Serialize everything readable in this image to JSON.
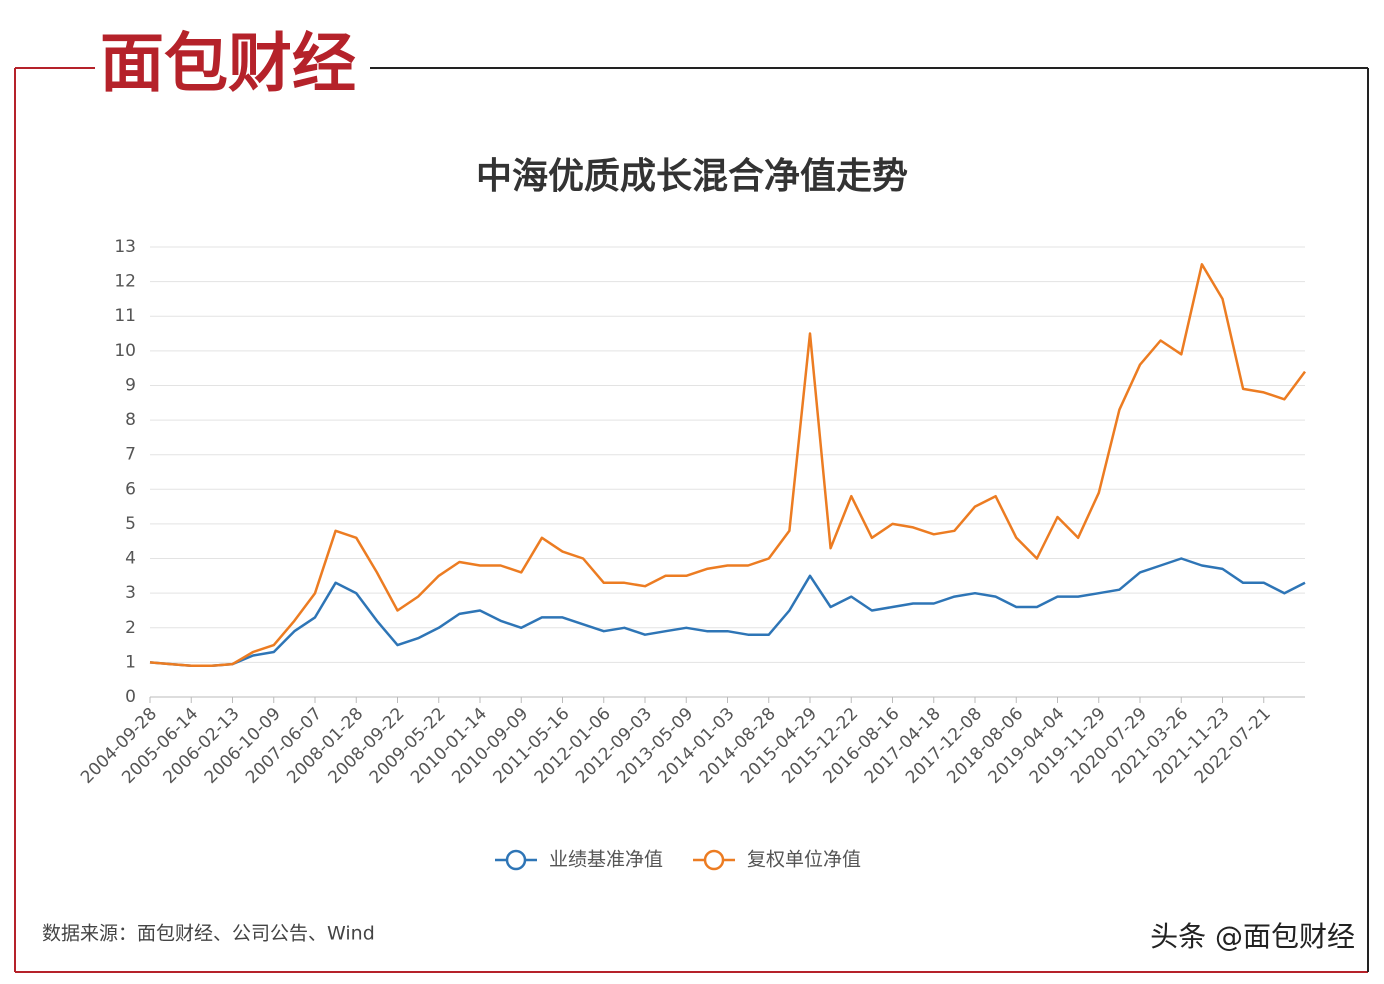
{
  "logo": "面包财经",
  "source": "数据来源：面包财经、公司公告、Wind",
  "watermark": "头条 @面包财经",
  "chart_data": {
    "type": "line",
    "title": "中海优质成长混合净值走势",
    "categories": [
      "2004-09-28",
      null,
      "2005-06-14",
      null,
      "2006-02-13",
      null,
      "2006-10-09",
      null,
      "2007-06-07",
      null,
      "2008-01-28",
      null,
      "2008-09-22",
      null,
      "2009-05-22",
      null,
      "2010-01-14",
      null,
      "2010-09-09",
      null,
      "2011-05-16",
      null,
      "2012-01-06",
      null,
      "2012-09-03",
      null,
      "2013-05-09",
      null,
      "2014-01-03",
      null,
      "2014-08-28",
      null,
      "2015-04-29",
      null,
      "2015-12-22",
      null,
      "2016-08-16",
      null,
      "2017-04-18",
      null,
      "2017-12-08",
      null,
      "2018-08-06",
      null,
      "2019-04-04",
      null,
      "2019-11-29",
      null,
      "2020-07-29",
      null,
      "2021-03-26",
      null,
      "2021-11-23",
      null,
      "2022-07-21",
      null,
      null
    ],
    "series": [
      {
        "name": "业绩基准净值",
        "color": "#2e75b6",
        "values": [
          1.0,
          0.95,
          0.9,
          0.9,
          0.95,
          1.2,
          1.3,
          1.9,
          2.3,
          3.3,
          3.0,
          2.2,
          1.5,
          1.7,
          2.0,
          2.4,
          2.5,
          2.2,
          2.0,
          2.3,
          2.3,
          2.1,
          1.9,
          2.0,
          1.8,
          1.9,
          2.0,
          1.9,
          1.9,
          1.8,
          1.8,
          2.5,
          3.5,
          2.6,
          2.9,
          2.5,
          2.6,
          2.7,
          2.7,
          2.9,
          3.0,
          2.9,
          2.6,
          2.6,
          2.9,
          2.9,
          3.0,
          3.1,
          3.6,
          3.8,
          4.0,
          3.8,
          3.7,
          3.3,
          3.3,
          3.0,
          3.3
        ]
      },
      {
        "name": "复权单位净值",
        "color": "#ec7c22",
        "values": [
          1.0,
          0.95,
          0.9,
          0.9,
          0.95,
          1.3,
          1.5,
          2.2,
          3.0,
          4.8,
          4.6,
          3.6,
          2.5,
          2.9,
          3.5,
          3.9,
          3.8,
          3.8,
          3.6,
          4.6,
          4.2,
          4.0,
          3.3,
          3.3,
          3.2,
          3.5,
          3.5,
          3.7,
          3.8,
          3.8,
          4.0,
          4.8,
          10.5,
          4.3,
          5.8,
          4.6,
          5.0,
          4.9,
          4.7,
          4.8,
          5.5,
          5.8,
          4.6,
          4.0,
          5.2,
          4.6,
          5.9,
          8.3,
          9.6,
          10.3,
          9.9,
          12.5,
          11.5,
          8.9,
          8.8,
          8.6,
          9.4
        ]
      }
    ],
    "ylim": [
      0,
      13
    ],
    "yticks": [
      0,
      1,
      2,
      3,
      4,
      5,
      6,
      7,
      8,
      9,
      10,
      11,
      12,
      13
    ],
    "grid": true,
    "legend": "bottom"
  }
}
